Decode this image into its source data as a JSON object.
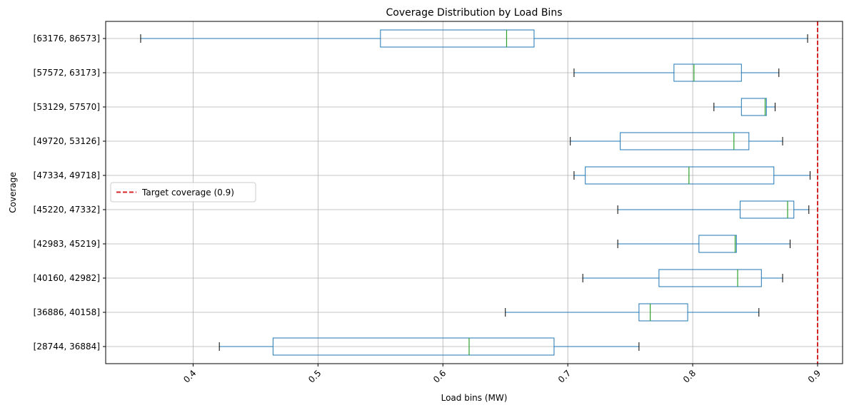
{
  "chart_data": {
    "type": "boxplot",
    "orientation": "horizontal",
    "title": "Coverage Distribution by Load Bins",
    "xlabel": "Load bins (MW)",
    "ylabel": "Coverage",
    "xlim": [
      0.33,
      0.92
    ],
    "xticks": [
      "0.4",
      "0.5",
      "0.6",
      "0.7",
      "0.8",
      "0.9"
    ],
    "grid": true,
    "legend_position": "center-left",
    "categories": [
      "[28744, 36884]",
      "[36886, 40158]",
      "[40160, 42982]",
      "[42983, 45219]",
      "[45220, 47332]",
      "[47334, 49718]",
      "[49720, 53126]",
      "[53129, 57570]",
      "[57572, 63173]",
      "[63176, 86573]"
    ],
    "boxes": [
      {
        "whisker_low": 0.421,
        "q1": 0.464,
        "median": 0.621,
        "q3": 0.689,
        "whisker_high": 0.757
      },
      {
        "whisker_low": 0.65,
        "q1": 0.757,
        "median": 0.766,
        "q3": 0.796,
        "whisker_high": 0.853
      },
      {
        "whisker_low": 0.712,
        "q1": 0.773,
        "median": 0.836,
        "q3": 0.855,
        "whisker_high": 0.872
      },
      {
        "whisker_low": 0.74,
        "q1": 0.805,
        "median": 0.834,
        "q3": 0.835,
        "whisker_high": 0.878
      },
      {
        "whisker_low": 0.74,
        "q1": 0.838,
        "median": 0.876,
        "q3": 0.881,
        "whisker_high": 0.893
      },
      {
        "whisker_low": 0.705,
        "q1": 0.714,
        "median": 0.797,
        "q3": 0.865,
        "whisker_high": 0.894
      },
      {
        "whisker_low": 0.702,
        "q1": 0.742,
        "median": 0.833,
        "q3": 0.845,
        "whisker_high": 0.872
      },
      {
        "whisker_low": 0.817,
        "q1": 0.839,
        "median": 0.858,
        "q3": 0.859,
        "whisker_high": 0.866
      },
      {
        "whisker_low": 0.705,
        "q1": 0.785,
        "median": 0.801,
        "q3": 0.839,
        "whisker_high": 0.869
      },
      {
        "whisker_low": 0.358,
        "q1": 0.55,
        "median": 0.651,
        "q3": 0.673,
        "whisker_high": 0.892
      }
    ],
    "reference_line": {
      "value": 0.9,
      "label": "Target coverage (0.9)",
      "color": "#d62728"
    },
    "colors": {
      "box": "#1f77b4",
      "median": "#2ca02c",
      "whisker_cap": "#000000",
      "grid": "#b0b0b0"
    }
  }
}
